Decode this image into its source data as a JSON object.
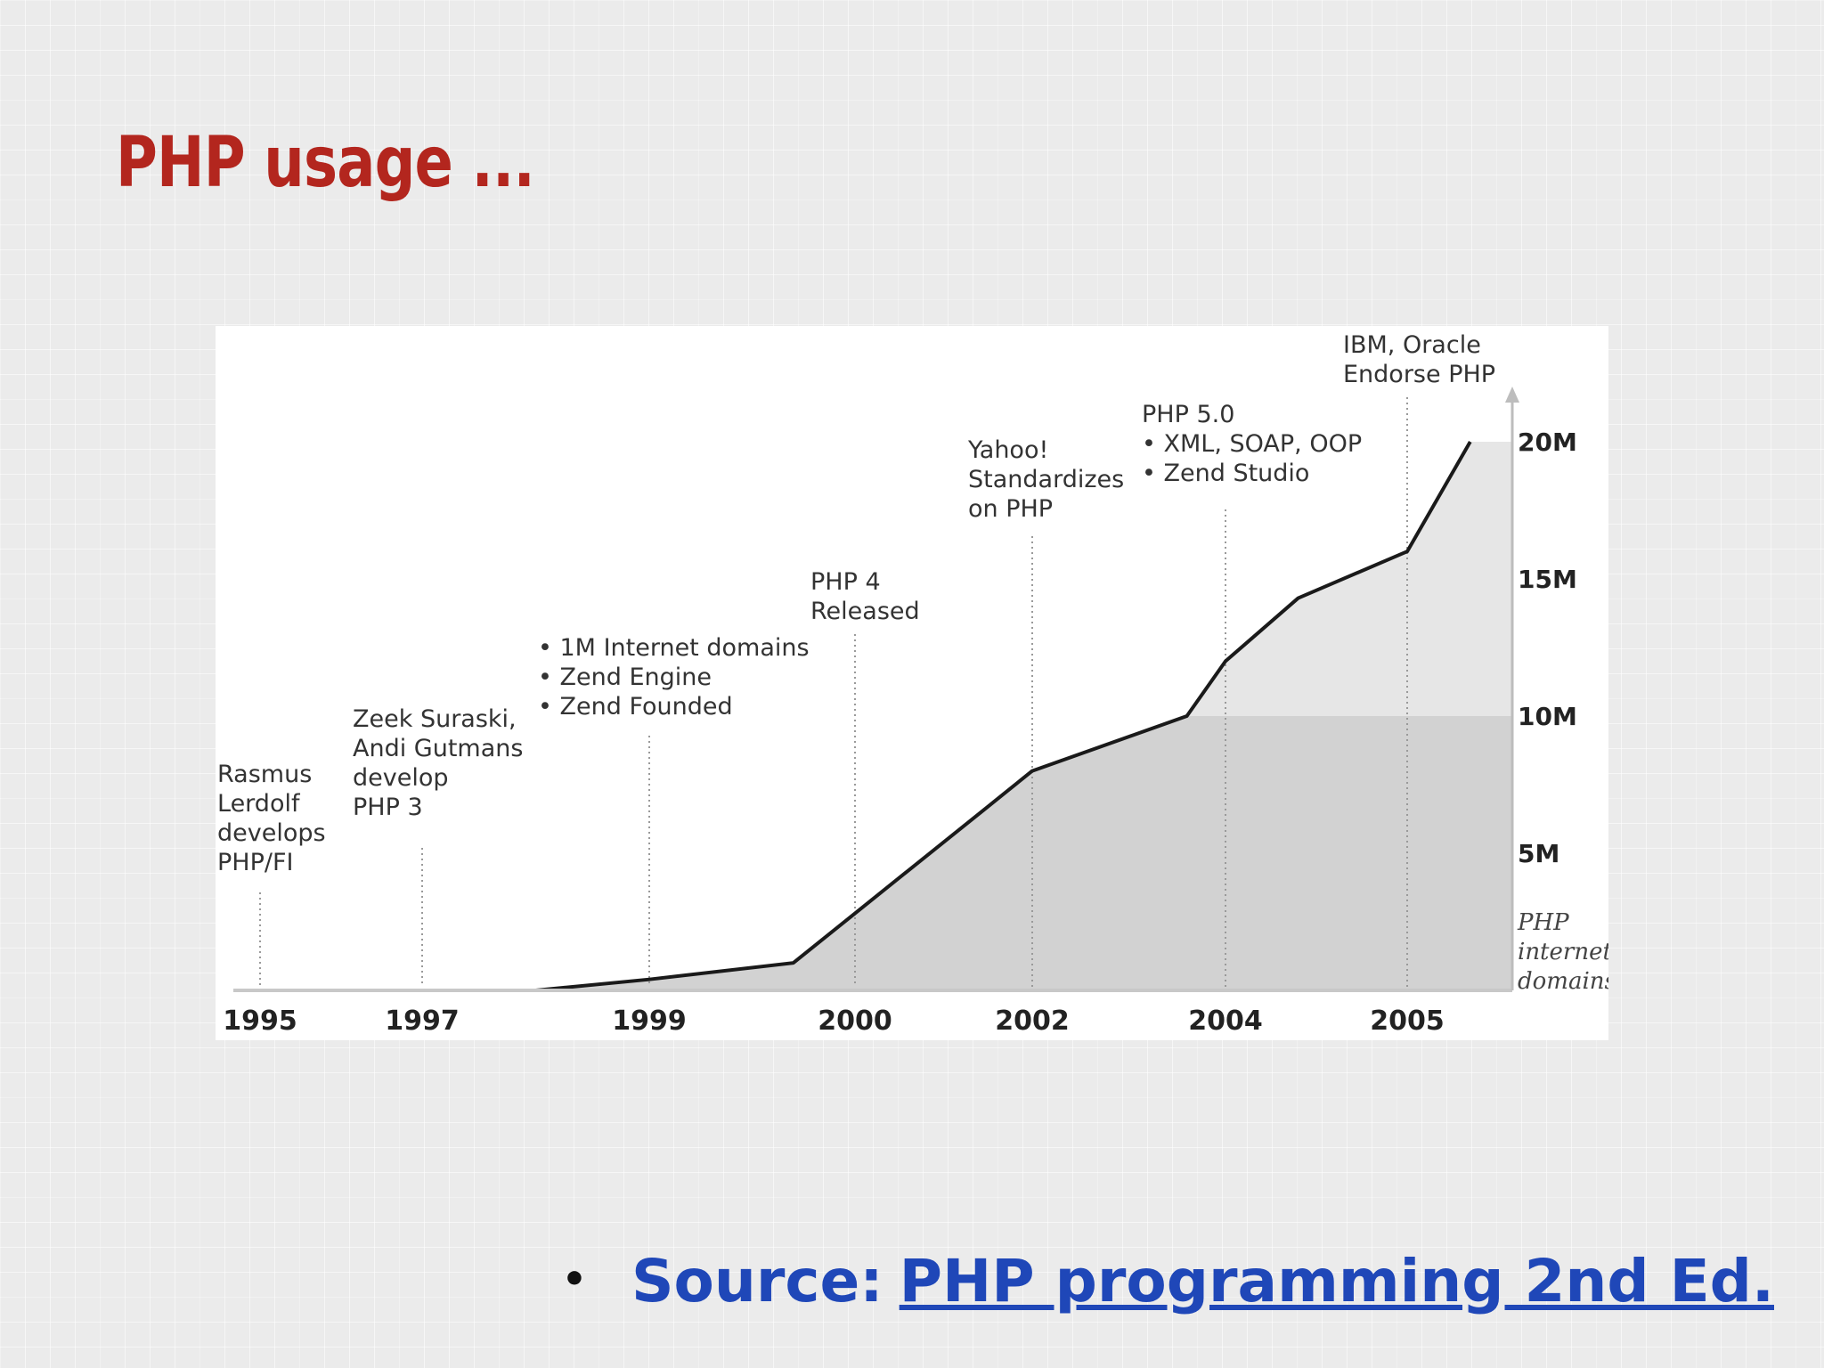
{
  "slide": {
    "title": "PHP usage ...",
    "source_label": "Source:",
    "source_link_text": "PHP programming 2nd Ed."
  },
  "colors": {
    "title": "#b3261e",
    "link": "#1f47b8",
    "area_light": "#e6e6e6",
    "area_dark": "#d2d2d2",
    "line": "#1a1a1a"
  },
  "chart_data": {
    "type": "area",
    "title": "",
    "xlabel": "",
    "ylabel": "PHP internet domains",
    "x_ticks": [
      "1995",
      "1997",
      "1999",
      "2000",
      "2002",
      "2004",
      "2005"
    ],
    "y_ticks": [
      "5M",
      "10M",
      "15M",
      "20M"
    ],
    "ylim": [
      0,
      20000000
    ],
    "series": [
      {
        "values": [
          {
            "x": "1998",
            "y": 0
          },
          {
            "x": "1999",
            "y": 400000
          },
          {
            "x": "1999.7",
            "y": 1000000
          },
          {
            "x": "2001.5",
            "y": 6700000
          },
          {
            "x": "2002",
            "y": 8000000
          },
          {
            "x": "2003.6",
            "y": 10000000
          },
          {
            "x": "2004",
            "y": 12000000
          },
          {
            "x": "2004.4",
            "y": 14300000
          },
          {
            "x": "2005",
            "y": 16000000
          },
          {
            "x": "2005.6",
            "y": 20000000
          }
        ]
      }
    ],
    "shaded_band_below": 10000000,
    "annotations": [
      {
        "x": "1995",
        "lines": [
          "Rasmus",
          "Lerdolf",
          "develops",
          "PHP/FI"
        ]
      },
      {
        "x": "1997",
        "lines": [
          "Zeek Suraski,",
          "Andi Gutmans",
          "develop",
          "PHP 3"
        ]
      },
      {
        "x": "1999",
        "lines": [
          "• 1M Internet domains",
          "• Zend Engine",
          "• Zend Founded"
        ]
      },
      {
        "x": "2000",
        "lines": [
          "PHP 4",
          "Released"
        ]
      },
      {
        "x": "2002",
        "lines": [
          "Yahoo!",
          "Standardizes",
          "on PHP"
        ]
      },
      {
        "x": "2004",
        "lines": [
          "PHP 5.0",
          "• XML, SOAP, OOP",
          "• Zend Studio"
        ]
      },
      {
        "x": "2005",
        "lines": [
          "IBM, Oracle",
          "Endorse PHP"
        ]
      }
    ],
    "grid": false,
    "legend": "none"
  }
}
